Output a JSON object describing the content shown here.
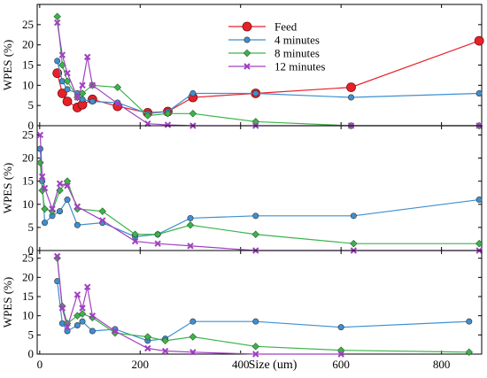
{
  "chart_data": [
    {
      "type": "line",
      "ylabel": "WPES (%)",
      "xlim": [
        -5,
        880
      ],
      "ylim": [
        0,
        30
      ],
      "yticks": [
        0,
        5,
        10,
        15,
        20,
        25
      ],
      "legend": {
        "placement": "top-right",
        "entries": [
          "Feed",
          "4 minutes",
          "8 minutes",
          "12 minutes"
        ]
      },
      "series": [
        {
          "name": "Feed",
          "color": "#e8202a",
          "marker": "circle",
          "x": [
            35,
            45,
            55,
            75,
            85,
            105,
            155,
            215,
            255,
            305,
            430,
            620,
            875
          ],
          "y": [
            13,
            8,
            6,
            4.5,
            5.2,
            6.5,
            4.8,
            3.2,
            3.5,
            7,
            8,
            9.5,
            21
          ]
        },
        {
          "name": "4 minutes",
          "color": "#3d8fd1",
          "marker": "circle",
          "x": [
            35,
            45,
            55,
            75,
            85,
            105,
            155,
            215,
            255,
            305,
            430,
            620,
            875
          ],
          "y": [
            16,
            11,
            9,
            8,
            6.5,
            6,
            5.7,
            3,
            3.5,
            8,
            8,
            7,
            8
          ]
        },
        {
          "name": "8 minutes",
          "color": "#3cb44b",
          "marker": "diamond",
          "x": [
            35,
            45,
            55,
            75,
            85,
            105,
            155,
            215,
            255,
            305,
            430,
            620,
            875
          ],
          "y": [
            27,
            15,
            11,
            7,
            8,
            10,
            9.5,
            2.5,
            3,
            3,
            1,
            0,
            0
          ]
        },
        {
          "name": "12 minutes",
          "color": "#a040c0",
          "marker": "cross",
          "x": [
            35,
            45,
            55,
            75,
            85,
            95,
            105,
            155,
            215,
            255,
            305,
            430,
            620,
            875
          ],
          "y": [
            25.5,
            17.5,
            13,
            7,
            10,
            17,
            10,
            5.5,
            0.5,
            0.2,
            0,
            0,
            0,
            0
          ]
        }
      ]
    },
    {
      "type": "line",
      "ylabel": "WPES (%)",
      "xlim": [
        -5,
        880
      ],
      "ylim": [
        0,
        27
      ],
      "yticks": [
        0,
        5,
        10,
        15,
        20,
        25
      ],
      "series": [
        {
          "color": "#3d8fd1",
          "marker": "circle",
          "x": [
            1,
            5,
            10,
            25,
            40,
            55,
            75,
            125,
            190,
            235,
            300,
            430,
            625,
            875
          ],
          "y": [
            22,
            15,
            6,
            7.5,
            8.5,
            11,
            5.5,
            6,
            3,
            3.5,
            7,
            7.5,
            7.5,
            11
          ]
        },
        {
          "color": "#3cb44b",
          "marker": "diamond",
          "x": [
            1,
            5,
            10,
            25,
            40,
            55,
            75,
            125,
            190,
            235,
            300,
            430,
            625,
            875
          ],
          "y": [
            19,
            13,
            9,
            8.5,
            13,
            15,
            9,
            8.5,
            3.5,
            3.5,
            5.5,
            3.5,
            1.5,
            1.5
          ]
        },
        {
          "color": "#a040c0",
          "marker": "cross",
          "x": [
            1,
            5,
            10,
            25,
            40,
            55,
            75,
            125,
            190,
            235,
            300,
            430,
            625,
            875
          ],
          "y": [
            25,
            16,
            13.5,
            9,
            14.5,
            14,
            9.5,
            6.5,
            2,
            1.5,
            1,
            0,
            0,
            0
          ]
        }
      ]
    },
    {
      "type": "line",
      "ylabel": "WPES (%)",
      "xlabel": "Size (um)",
      "xlim": [
        -5,
        880
      ],
      "ylim": [
        0,
        27
      ],
      "yticks": [
        0,
        5,
        10,
        15,
        20,
        25
      ],
      "xticks": [
        0,
        200,
        400,
        600,
        800
      ],
      "series": [
        {
          "color": "#3d8fd1",
          "marker": "circle",
          "x": [
            35,
            45,
            55,
            75,
            85,
            105,
            150,
            215,
            250,
            305,
            430,
            600,
            855
          ],
          "y": [
            19,
            8,
            6,
            7.5,
            8.5,
            6,
            6.5,
            3.5,
            4,
            8.5,
            8.5,
            7,
            8.5
          ]
        },
        {
          "color": "#3cb44b",
          "marker": "diamond",
          "x": [
            35,
            45,
            55,
            75,
            85,
            105,
            150,
            215,
            250,
            305,
            430,
            600,
            855
          ],
          "y": [
            25,
            12.5,
            8,
            10,
            10.5,
            9.5,
            5.5,
            4.5,
            3.5,
            4.5,
            2,
            1,
            0.5
          ]
        },
        {
          "color": "#a040c0",
          "marker": "cross",
          "x": [
            35,
            45,
            55,
            75,
            85,
            95,
            105,
            150,
            215,
            250,
            305,
            430,
            600
          ],
          "y": [
            25.5,
            12,
            7,
            15.5,
            12,
            17.5,
            10,
            6,
            1.5,
            0.8,
            0.5,
            0,
            0
          ]
        }
      ]
    }
  ]
}
